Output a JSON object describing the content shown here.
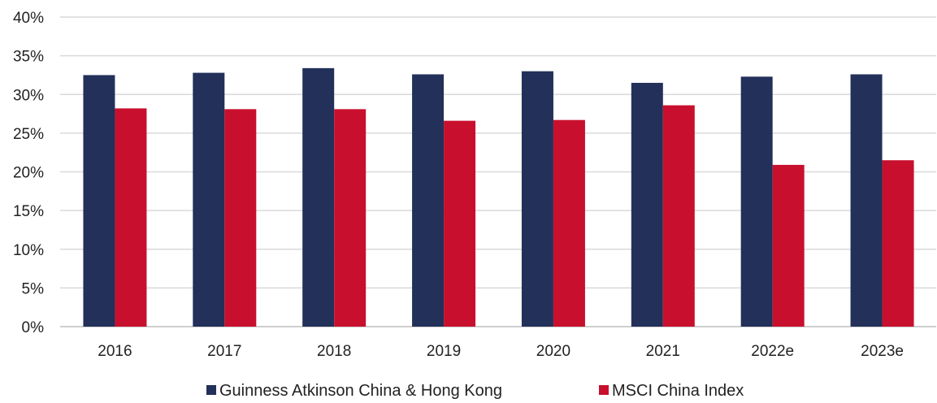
{
  "chart_data": {
    "type": "bar",
    "title": "",
    "xlabel": "",
    "ylabel": "",
    "categories": [
      "2016",
      "2017",
      "2018",
      "2019",
      "2020",
      "2021",
      "2022e",
      "2023e"
    ],
    "series": [
      {
        "name": "Guinness Atkinson China & Hong Kong",
        "color": "#22305a",
        "values": [
          32.5,
          32.8,
          33.4,
          32.6,
          33.0,
          31.5,
          32.3,
          32.6
        ]
      },
      {
        "name": "MSCI China Index",
        "color": "#c8102e",
        "values": [
          28.2,
          28.1,
          28.1,
          26.6,
          26.7,
          28.6,
          20.9,
          21.5
        ]
      }
    ],
    "ylim": [
      0,
      40
    ],
    "yticks": [
      0,
      5,
      10,
      15,
      20,
      25,
      30,
      35,
      40
    ],
    "ytick_labels": [
      "0%",
      "5%",
      "10%",
      "15%",
      "20%",
      "25%",
      "30%",
      "35%",
      "40%"
    ],
    "grid": true,
    "legend_position": "bottom-center"
  }
}
